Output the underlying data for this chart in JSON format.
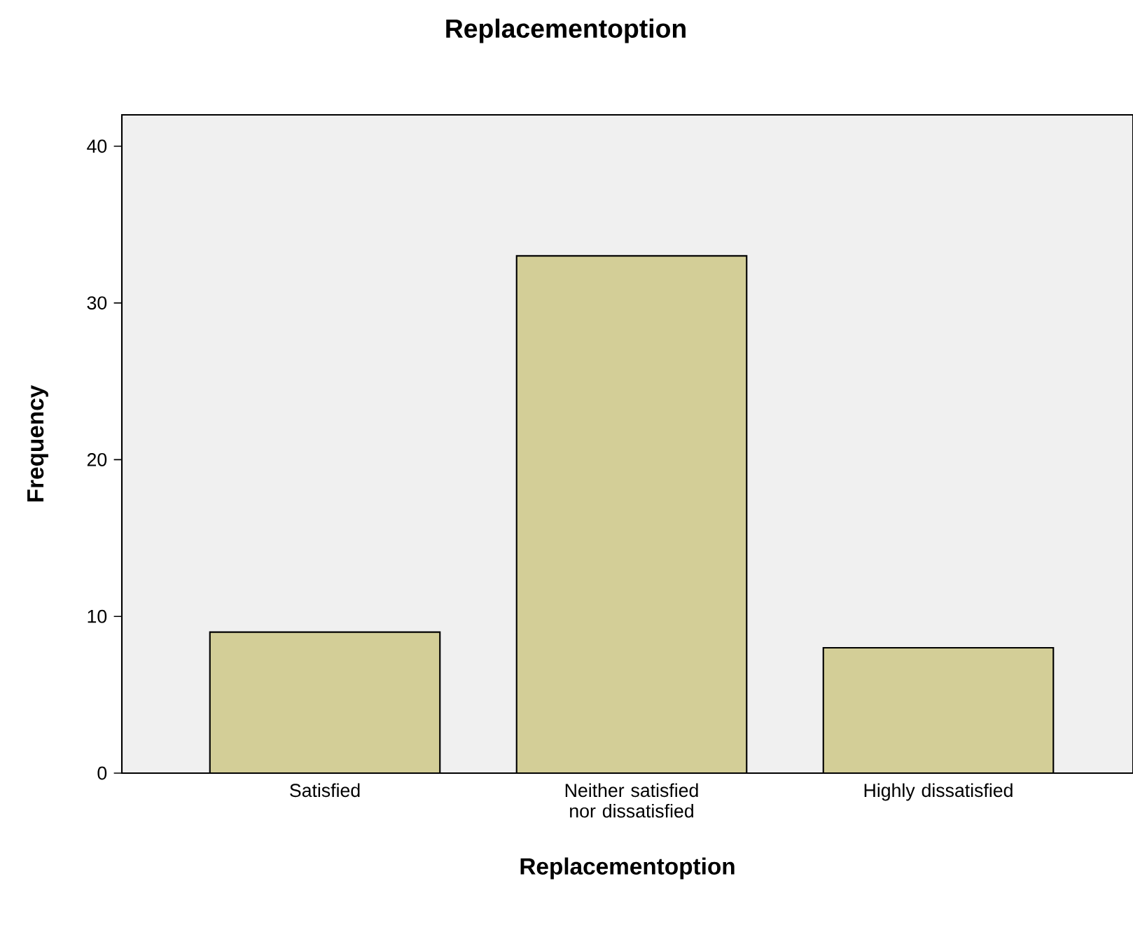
{
  "chart_data": {
    "type": "bar",
    "title": "Replacementoption",
    "xlabel": "Replacementoption",
    "ylabel": "Frequency",
    "categories": [
      "Satisfied",
      "Neither satisfied nor dissatisfied",
      "Highly dissatisfied"
    ],
    "values": [
      9,
      33,
      8
    ],
    "color": "#d3ce97",
    "ylim": [
      0,
      42
    ],
    "yticks": [
      0,
      10,
      20,
      30,
      40
    ]
  }
}
